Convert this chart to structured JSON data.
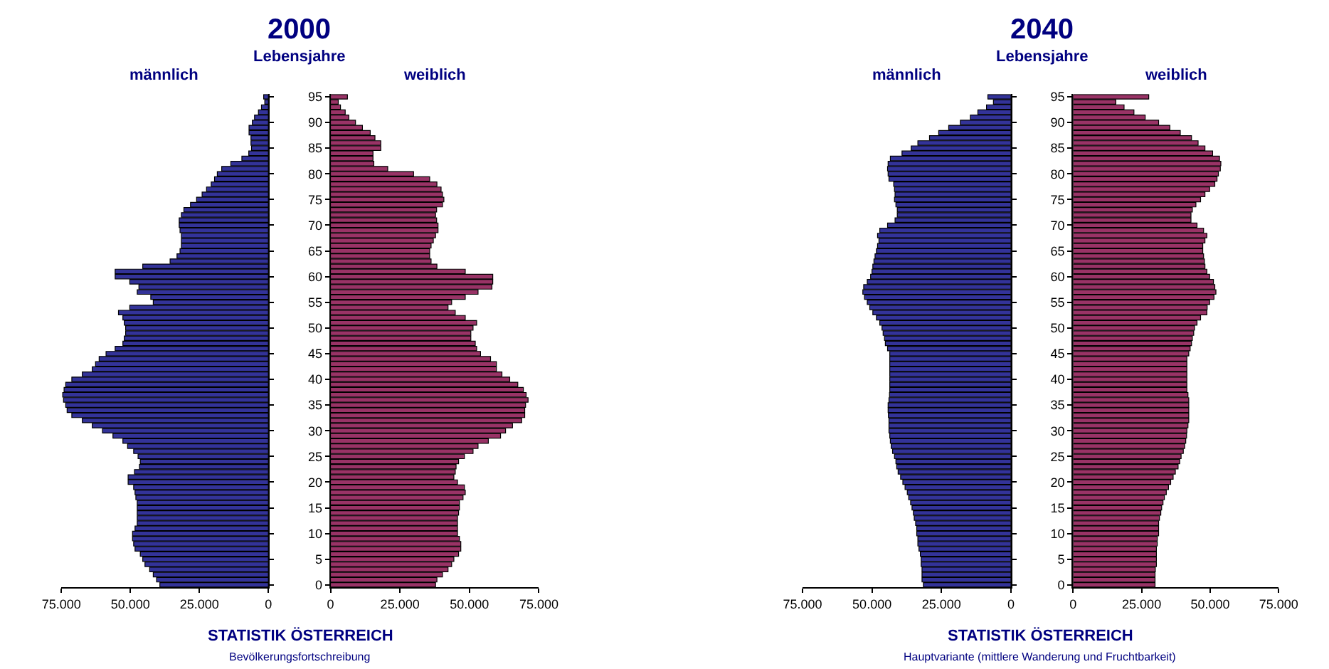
{
  "chart_data": [
    {
      "type": "bar",
      "orientation": "horizontal",
      "xlim": [
        75000,
        0
      ],
      "xticks": [
        {
          "value": 75000,
          "label": "75.000"
        },
        {
          "value": 50000,
          "label": "50.000"
        },
        {
          "value": 25000,
          "label": "25.000"
        },
        0
      ],
      "tick_labels": "x",
      "categories": [
        "95",
        null,
        null,
        null,
        null,
        "90",
        null,
        null,
        null,
        null,
        "85",
        null,
        null,
        null,
        null,
        "80",
        null,
        null,
        null,
        null,
        "75",
        null,
        null,
        null,
        null,
        "70",
        null,
        null,
        null,
        null,
        "65",
        null,
        null,
        null,
        null,
        "60",
        null,
        null,
        null,
        null,
        "55",
        null,
        null,
        null,
        null,
        "50",
        null,
        null,
        null,
        null,
        "45",
        null,
        null,
        null,
        null,
        "40",
        null,
        null,
        null,
        null,
        "35",
        null,
        null,
        null,
        null,
        "30",
        null,
        null,
        null,
        null,
        "25",
        null,
        null,
        null,
        null,
        "20",
        null,
        null,
        null,
        null,
        "15",
        null,
        null,
        null,
        null,
        "10",
        null,
        null,
        null,
        null,
        "5",
        null,
        null,
        null,
        null,
        "0"
      ],
      "series": [
        {
          "name": "männlich",
          "color": "#333399",
          "values": [
            1700,
            1300,
            2500,
            3600,
            5000,
            5800,
            7000,
            7000,
            6300,
            6300,
            6100,
            7100,
            9600,
            13600,
            16900,
            18500,
            19500,
            20700,
            22400,
            24000,
            26000,
            28200,
            30600,
            31500,
            32300,
            32300,
            32000,
            31500,
            31500,
            31500,
            32000,
            33100,
            35600,
            45500,
            55500,
            55500,
            50200,
            46900,
            47500,
            42600,
            41700,
            50200,
            54300,
            52700,
            52200,
            51700,
            51700,
            52200,
            52700,
            55500,
            58800,
            61300,
            62600,
            63800,
            67400,
            71200,
            73400,
            74000,
            74500,
            74200,
            73400,
            72900,
            71200,
            67400,
            63800,
            60100,
            56300,
            52700,
            51000,
            48800,
            47200,
            46400,
            46700,
            48500,
            50800,
            50800,
            48800,
            48300,
            48000,
            47500,
            47500,
            47500,
            47500,
            47500,
            48300,
            49200,
            49200,
            48800,
            48300,
            46400,
            45500,
            44700,
            43000,
            41700,
            40500,
            39300
          ]
        }
      ]
    },
    {
      "type": "bar",
      "orientation": "horizontal",
      "title": "2000",
      "ylabel": "Lebensjahre",
      "xlim": [
        0,
        75000
      ],
      "xticks": [
        0,
        {
          "value": 25000,
          "label": "25.000"
        },
        {
          "value": 50000,
          "label": "50.000"
        },
        {
          "value": 75000,
          "label": "75.000"
        }
      ],
      "categories": [
        "95",
        null,
        null,
        null,
        null,
        "90",
        null,
        null,
        null,
        null,
        "85",
        null,
        null,
        null,
        null,
        "80",
        null,
        null,
        null,
        null,
        "75",
        null,
        null,
        null,
        null,
        "70",
        null,
        null,
        null,
        null,
        "65",
        null,
        null,
        null,
        null,
        "60",
        null,
        null,
        null,
        null,
        "55",
        null,
        null,
        null,
        null,
        "50",
        null,
        null,
        null,
        null,
        "45",
        null,
        null,
        null,
        null,
        "40",
        null,
        null,
        null,
        null,
        "35",
        null,
        null,
        null,
        null,
        "30",
        null,
        null,
        null,
        null,
        "25",
        null,
        null,
        null,
        null,
        "20",
        null,
        null,
        null,
        null,
        "15",
        null,
        null,
        null,
        null,
        "10",
        null,
        null,
        null,
        null,
        "5",
        null,
        null,
        null,
        null,
        "0"
      ],
      "series": [
        {
          "name": "weiblich",
          "color": "#993366",
          "values": [
            6100,
            2800,
            3600,
            5300,
            6600,
            9000,
            11500,
            14300,
            16000,
            18100,
            18100,
            15300,
            15300,
            15600,
            20600,
            29900,
            35700,
            38300,
            39800,
            40300,
            40800,
            40300,
            38200,
            37800,
            38200,
            38700,
            38700,
            37800,
            37000,
            36200,
            35700,
            35700,
            36200,
            38300,
            48500,
            58400,
            58400,
            58100,
            53100,
            48500,
            43600,
            42300,
            44900,
            48500,
            52600,
            51300,
            50500,
            50500,
            52100,
            52600,
            54000,
            57600,
            59700,
            59700,
            61700,
            64500,
            67400,
            69400,
            70400,
            71100,
            70200,
            69900,
            69900,
            68800,
            65500,
            63000,
            61200,
            56800,
            53100,
            51300,
            48200,
            46100,
            45200,
            44900,
            44400,
            45700,
            48200,
            48500,
            47700,
            46400,
            46400,
            46100,
            45700,
            45700,
            45700,
            45700,
            46400,
            46900,
            46900,
            46100,
            44400,
            43600,
            42300,
            40300,
            38300,
            37800
          ]
        }
      ],
      "annotations": [
        "STATISTIK ÖSTERREICH",
        "Bevölkerungsfortschreibung"
      ]
    },
    {
      "type": "bar",
      "orientation": "horizontal",
      "xlim": [
        75000,
        0
      ],
      "xticks": [
        {
          "value": 75000,
          "label": "75.000"
        },
        {
          "value": 50000,
          "label": "50.000"
        },
        {
          "value": 25000,
          "label": "25.000"
        },
        0
      ],
      "tick_labels": "x",
      "categories": [
        "95",
        null,
        null,
        null,
        null,
        "90",
        null,
        null,
        null,
        null,
        "85",
        null,
        null,
        null,
        null,
        "80",
        null,
        null,
        null,
        null,
        "75",
        null,
        null,
        null,
        null,
        "70",
        null,
        null,
        null,
        null,
        "65",
        null,
        null,
        null,
        null,
        "60",
        null,
        null,
        null,
        null,
        "55",
        null,
        null,
        null,
        null,
        "50",
        null,
        null,
        null,
        null,
        "45",
        null,
        null,
        null,
        null,
        "40",
        null,
        null,
        null,
        null,
        "35",
        null,
        null,
        null,
        null,
        "30",
        null,
        null,
        null,
        null,
        "25",
        null,
        null,
        null,
        null,
        "20",
        null,
        null,
        null,
        null,
        "15",
        null,
        null,
        null,
        null,
        "10",
        null,
        null,
        null,
        null,
        "5",
        null,
        null,
        null,
        null,
        "0"
      ],
      "series": [
        {
          "name": "männlich",
          "color": "#333399",
          "values": [
            8300,
            6300,
            8800,
            11900,
            14600,
            18200,
            22400,
            26000,
            29300,
            33500,
            35900,
            39200,
            43400,
            44200,
            44400,
            44200,
            43900,
            42200,
            41900,
            41700,
            41900,
            41400,
            40900,
            40900,
            41700,
            44400,
            47200,
            48000,
            47500,
            48000,
            48400,
            48900,
            49300,
            49700,
            50000,
            50500,
            51700,
            53000,
            53300,
            52700,
            51700,
            50800,
            49700,
            48400,
            47200,
            46400,
            46000,
            45500,
            45200,
            44400,
            43600,
            43600,
            43600,
            43600,
            43600,
            43600,
            43600,
            43600,
            43700,
            43900,
            44200,
            44200,
            44100,
            43900,
            43900,
            43900,
            43600,
            43400,
            43100,
            42600,
            41900,
            41400,
            41100,
            40600,
            39700,
            38900,
            38100,
            37300,
            36800,
            36100,
            35600,
            35100,
            34800,
            34300,
            33900,
            33900,
            33500,
            33500,
            33100,
            32600,
            32300,
            32300,
            32000,
            32000,
            32000,
            31500
          ]
        }
      ]
    },
    {
      "type": "bar",
      "orientation": "horizontal",
      "title": "2040",
      "ylabel": "Lebensjahre",
      "xlim": [
        0,
        75000
      ],
      "xticks": [
        0,
        {
          "value": 25000,
          "label": "25.000"
        },
        {
          "value": 50000,
          "label": "50.000"
        },
        {
          "value": 75000,
          "label": "75.000"
        }
      ],
      "categories": [
        "95",
        null,
        null,
        null,
        null,
        "90",
        null,
        null,
        null,
        null,
        "85",
        null,
        null,
        null,
        null,
        "80",
        null,
        null,
        null,
        null,
        "75",
        null,
        null,
        null,
        null,
        "70",
        null,
        null,
        null,
        null,
        "65",
        null,
        null,
        null,
        null,
        "60",
        null,
        null,
        null,
        null,
        "55",
        null,
        null,
        null,
        null,
        "50",
        null,
        null,
        null,
        null,
        "45",
        null,
        null,
        null,
        null,
        "40",
        null,
        null,
        null,
        null,
        "35",
        null,
        null,
        null,
        null,
        "30",
        null,
        null,
        null,
        null,
        "25",
        null,
        null,
        null,
        null,
        "20",
        null,
        null,
        null,
        null,
        "15",
        null,
        null,
        null,
        null,
        "10",
        null,
        null,
        null,
        null,
        "5",
        null,
        null,
        null,
        null,
        "0"
      ],
      "series": [
        {
          "name": "weiblich",
          "color": "#993366",
          "values": [
            27600,
            15600,
            18600,
            22200,
            26300,
            31200,
            35300,
            39100,
            43200,
            45600,
            48100,
            50900,
            53400,
            53900,
            53700,
            53000,
            52500,
            51700,
            49800,
            48100,
            46500,
            44800,
            43500,
            43000,
            43000,
            45200,
            47600,
            48800,
            48100,
            47300,
            47300,
            47600,
            47900,
            48100,
            48800,
            49800,
            51200,
            51700,
            52100,
            51400,
            49800,
            48900,
            48800,
            46500,
            45200,
            44300,
            44000,
            43500,
            43200,
            42700,
            42200,
            41500,
            41500,
            41500,
            41500,
            41500,
            41500,
            41500,
            41900,
            42200,
            42200,
            42200,
            42200,
            42200,
            41900,
            41500,
            41400,
            41100,
            40700,
            40200,
            39400,
            38900,
            38300,
            37300,
            36500,
            35600,
            34800,
            34000,
            33300,
            32800,
            32300,
            32000,
            31500,
            31200,
            31200,
            31200,
            30700,
            30700,
            30400,
            30400,
            30400,
            30400,
            30000,
            29900,
            29900,
            29900
          ]
        }
      ],
      "annotations": [
        "STATISTIK ÖSTERREICH",
        "Hauptvariante (mittlere Wanderung und Fruchtbarkeit)"
      ]
    }
  ]
}
